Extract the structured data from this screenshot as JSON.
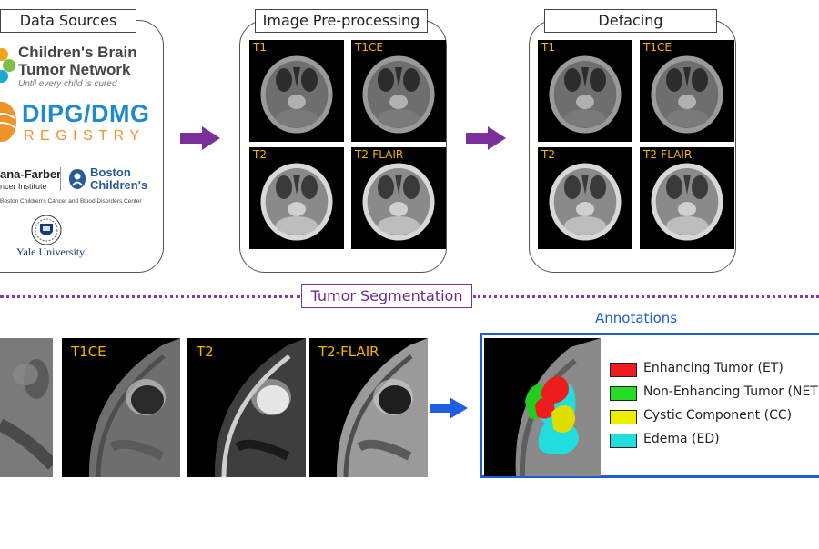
{
  "sections": {
    "data_sources": "Data Sources",
    "preprocessing": "Image Pre-processing",
    "defacing": "Defacing",
    "segmentation": "Tumor Segmentation",
    "annotations": "Annotations"
  },
  "logos": {
    "cbtn_line1": "Children's Brain",
    "cbtn_line2": "Tumor Network",
    "cbtn_tagline": "Until every child is cured",
    "dipg_main": "DIPG/DMG",
    "dipg_sub": "REGISTRY",
    "dana_line1": "ana-Farber",
    "dana_line2": "ncer Institute",
    "boston_line1": "Boston",
    "boston_line2": "Children's",
    "dana_boston_caption": "Boston Children's Cancer and Blood Disorders Center",
    "yale": "Yale University"
  },
  "preprocessing_labels": [
    "T1",
    "T1CE",
    "T2",
    "T2-FLAIR"
  ],
  "defacing_labels": [
    "T1",
    "T1CE",
    "T2",
    "T2-FLAIR"
  ],
  "segmentation_labels": [
    "T1CE",
    "T2",
    "T2-FLAIR"
  ],
  "legend": [
    {
      "label": "Enhancing Tumor (ET)",
      "color": "#ee1c1c"
    },
    {
      "label": "Non-Enhancing Tumor (NET",
      "color": "#22dd22"
    },
    {
      "label": "Cystic Component (CC)",
      "color": "#eeee00"
    },
    {
      "label": "Edema (ED)",
      "color": "#22dddd"
    }
  ],
  "colors": {
    "arrow_purple": "#7a2f9b",
    "arrow_blue": "#1f5fe0",
    "annot_border": "#1e5bd6",
    "dotted_line": "#8a3aa6",
    "label_yellow": "#f5b400"
  }
}
